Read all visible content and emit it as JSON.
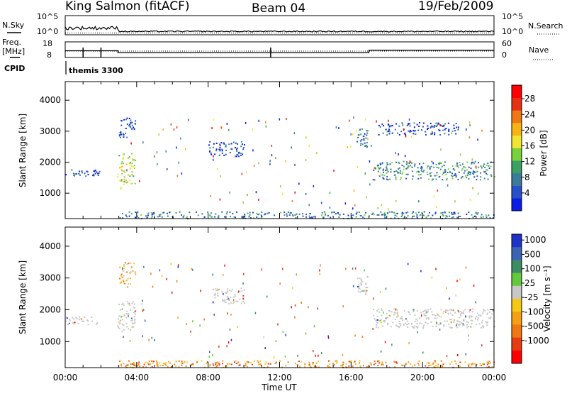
{
  "header": {
    "station": "King Salmon (fitACF)",
    "beam": "Beam 04",
    "date": "19/Feb/2009"
  },
  "strip_panels": {
    "noise": {
      "left_label": "N.Sky",
      "right_label": "N.Search",
      "left_ticks": [
        "10^5",
        "10^0"
      ],
      "right_ticks": [
        "10^5",
        "10^0"
      ]
    },
    "freq": {
      "left_label_line1": "Freq.",
      "left_label_line2": "[MHz]",
      "right_label": "Nave",
      "left_ticks": [
        "18",
        "8"
      ],
      "right_ticks": [
        "60",
        "0"
      ],
      "freq_levels_mhz": [
        {
          "start_h": 0.0,
          "end_h": 2.95,
          "mhz": 12.3
        },
        {
          "start_h": 2.95,
          "end_h": 17.0,
          "mhz": 11.0
        },
        {
          "start_h": 17.0,
          "end_h": 24.0,
          "mhz": 12.6
        }
      ]
    },
    "cpid": {
      "label": "CPID",
      "program": "themis 3300"
    }
  },
  "chart_data": [
    {
      "type": "heatmap",
      "name": "power",
      "xlabel": "",
      "ylabel": "Slant Range [km]",
      "xlim_hours": [
        0,
        24
      ],
      "ylim_km": [
        180,
        4600
      ],
      "y_ticks": [
        "1000",
        "2000",
        "3000",
        "4000"
      ],
      "x_ticks": [
        "00:00",
        "04:00",
        "08:00",
        "12:00",
        "16:00",
        "20:00",
        "00:00"
      ],
      "colorbar": {
        "label": "Power [dB]",
        "ticks": [
          "4",
          "8",
          "12",
          "16",
          "20",
          "24",
          "28"
        ],
        "colors": [
          "#0a1ce6",
          "#2850c8",
          "#3c7a9a",
          "#3ca064",
          "#78d23c",
          "#f0e632",
          "#f5b414",
          "#f07814",
          "#e63214",
          "#ff0000"
        ]
      },
      "echo_regions": [
        {
          "t0": 0.0,
          "t1": 1.9,
          "r0": 1550,
          "r1": 1800,
          "level": 0.15
        },
        {
          "t0": 2.9,
          "t1": 3.9,
          "r0": 1300,
          "r1": 2300,
          "level": 0.5
        },
        {
          "t0": 3.0,
          "t1": 3.9,
          "r0": 2800,
          "r1": 3500,
          "level": 0.15
        },
        {
          "t0": 8.0,
          "t1": 10.0,
          "r0": 2200,
          "r1": 2700,
          "level": 0.15
        },
        {
          "t0": 16.3,
          "t1": 16.9,
          "r0": 2500,
          "r1": 3100,
          "level": 0.2
        },
        {
          "t0": 17.2,
          "t1": 24.0,
          "r0": 1450,
          "r1": 2050,
          "level": 0.3
        },
        {
          "t0": 17.5,
          "t1": 22.0,
          "r0": 2900,
          "r1": 3300,
          "level": 0.15
        },
        {
          "t0": 3.0,
          "t1": 24.0,
          "r0": 200,
          "r1": 420,
          "level": 0.25
        }
      ]
    },
    {
      "type": "heatmap",
      "name": "velocity",
      "xlabel": "Time UT",
      "ylabel": "Slant Range [km]",
      "xlim_hours": [
        0,
        24
      ],
      "ylim_km": [
        180,
        4600
      ],
      "y_ticks": [
        "1000",
        "2000",
        "3000",
        "4000"
      ],
      "x_ticks": [
        "00:00",
        "04:00",
        "08:00",
        "12:00",
        "16:00",
        "20:00",
        "00:00"
      ],
      "colorbar": {
        "label": "Velocity [m s⁻¹]",
        "ticks": [
          "1000",
          "500",
          "100",
          "25",
          "-25",
          "-100",
          "-500",
          "-1000"
        ],
        "colors": [
          "#1e32c8",
          "#3c64b4",
          "#3c8c64",
          "#64c83c",
          "#c8c8c8",
          "#f5c814",
          "#f5a014",
          "#f07814",
          "#e63c14",
          "#ff0000"
        ]
      },
      "echo_regions": [
        {
          "t0": 0.0,
          "t1": 1.9,
          "r0": 1550,
          "r1": 1800,
          "level": 0.5
        },
        {
          "t0": 2.9,
          "t1": 3.9,
          "r0": 1300,
          "r1": 2300,
          "level": 0.5
        },
        {
          "t0": 3.0,
          "t1": 3.9,
          "r0": 2800,
          "r1": 3500,
          "level": 0.6
        },
        {
          "t0": 8.0,
          "t1": 10.0,
          "r0": 2200,
          "r1": 2700,
          "level": 0.5
        },
        {
          "t0": 16.3,
          "t1": 16.9,
          "r0": 2500,
          "r1": 3100,
          "level": 0.5
        },
        {
          "t0": 17.2,
          "t1": 24.0,
          "r0": 1450,
          "r1": 2050,
          "level": 0.5
        },
        {
          "t0": 3.0,
          "t1": 24.0,
          "r0": 200,
          "r1": 420,
          "level": 0.7
        }
      ]
    }
  ]
}
